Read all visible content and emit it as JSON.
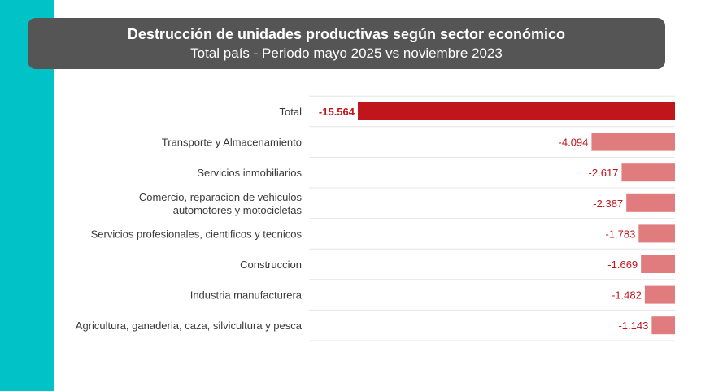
{
  "header": {
    "title": "Destrucción de unidades productivas según sector económico",
    "subtitle": "Total país - Periodo mayo 2025 vs noviembre 2023"
  },
  "colors": {
    "side_band": "#00c2c7",
    "header_bg": "#555555",
    "total_bar": "#c0151b",
    "sector_bar": "#e07b7e",
    "value_text": "#c0151b",
    "label_text": "#3a3a3a",
    "row_line": "#e6e6e6"
  },
  "chart_data": {
    "type": "bar",
    "orientation": "horizontal",
    "categories": [
      [
        "Total"
      ],
      [
        "Transporte y Almacenamiento"
      ],
      [
        "Servicios inmobiliarios"
      ],
      [
        "Comercio, reparacion de vehiculos",
        "automotores y motocicletas"
      ],
      [
        "Servicios profesionales, cientificos y tecnicos"
      ],
      [
        "Construccion"
      ],
      [
        "Industria manufacturera"
      ],
      [
        "Agricultura, ganaderia, caza, silvicultura y pesca"
      ]
    ],
    "values": [
      -15564,
      -4094,
      -2617,
      -2387,
      -1783,
      -1669,
      -1482,
      -1143
    ],
    "value_labels": [
      "-15.564",
      "-4.094",
      "-2.617",
      "-2.387",
      "-1.783",
      "-1.669",
      "-1.482",
      "-1.143"
    ],
    "title": "Destrucción de unidades productivas según sector económico",
    "subtitle": "Total país - Periodo mayo 2025 vs noviembre 2023",
    "xlabel": "",
    "ylabel": "",
    "xlim": [
      -15564,
      0
    ],
    "grid": false,
    "legend": "none"
  }
}
